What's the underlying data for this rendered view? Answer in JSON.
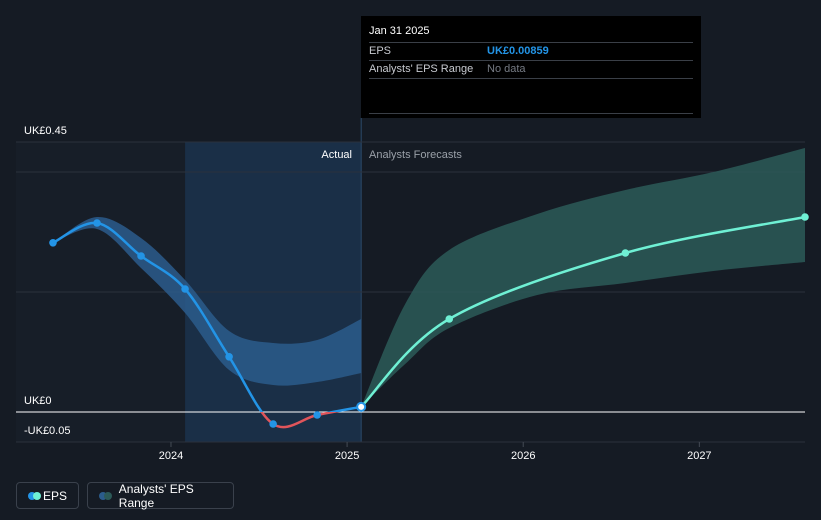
{
  "tooltip": {
    "date": "Jan 31 2025",
    "rows": [
      {
        "label": "EPS",
        "value": "UK£0.00859"
      },
      {
        "label": "Analysts' EPS Range",
        "value": "No data"
      }
    ]
  },
  "section_labels": {
    "actual": "Actual",
    "forecast": "Analysts Forecasts"
  },
  "legend": {
    "eps": "EPS",
    "range": "Analysts' EPS Range"
  },
  "colors": {
    "eps_actual": "#2394e6",
    "eps_negative": "#e0555b",
    "eps_forecast": "#6ff0d4",
    "range_actual": "#2b5c8c",
    "range_forecast": "#2c5a58",
    "tooltip_value": "#2394e6",
    "tooltip_muted": "#767b84"
  },
  "chart_data": {
    "type": "line",
    "y_ticks": [
      {
        "value": 0.45,
        "label": "UK£0.45"
      },
      {
        "value": 0,
        "label": "UK£0"
      },
      {
        "value": -0.05,
        "label": "-UK£0.05"
      }
    ],
    "gridlines": [
      0.45,
      0.4,
      0.2
    ],
    "x_ticks": [
      {
        "value": 2024.0,
        "label": "2024"
      },
      {
        "value": 2025.0,
        "label": "2025"
      },
      {
        "value": 2026.0,
        "label": "2026"
      },
      {
        "value": 2027.0,
        "label": "2027"
      }
    ],
    "xlim": [
      2023.12,
      2027.6
    ],
    "ylim": [
      -0.05,
      0.45
    ],
    "actual_start": 2024.08,
    "actual_end": 2025.08,
    "series": [
      {
        "name": "EPS",
        "role": "actual",
        "points": [
          {
            "x": 2023.33,
            "y": 0.282
          },
          {
            "x": 2023.58,
            "y": 0.315
          },
          {
            "x": 2023.83,
            "y": 0.26
          },
          {
            "x": 2024.08,
            "y": 0.205
          },
          {
            "x": 2024.33,
            "y": 0.092
          },
          {
            "x": 2024.58,
            "y": -0.02
          },
          {
            "x": 2024.83,
            "y": -0.005
          },
          {
            "x": 2025.08,
            "y": 0.00859
          }
        ]
      },
      {
        "name": "EPS",
        "role": "forecast",
        "points": [
          {
            "x": 2025.08,
            "y": 0.00859
          },
          {
            "x": 2025.58,
            "y": 0.155
          },
          {
            "x": 2026.58,
            "y": 0.265
          },
          {
            "x": 2027.6,
            "y": 0.325
          }
        ]
      }
    ],
    "range_actual": {
      "x": [
        2023.33,
        2023.58,
        2023.83,
        2024.08,
        2024.33,
        2024.58,
        2024.83,
        2025.08
      ],
      "upper": [
        0.282,
        0.325,
        0.29,
        0.22,
        0.135,
        0.115,
        0.12,
        0.155
      ],
      "lower": [
        0.282,
        0.305,
        0.24,
        0.165,
        0.07,
        0.045,
        0.05,
        0.065
      ]
    },
    "range_forecast": {
      "x": [
        2025.08,
        2025.33,
        2025.58,
        2026.08,
        2026.58,
        2027.08,
        2027.6
      ],
      "upper": [
        0.00859,
        0.18,
        0.27,
        0.33,
        0.37,
        0.4,
        0.44
      ],
      "lower": [
        0.00859,
        0.08,
        0.14,
        0.195,
        0.215,
        0.235,
        0.25
      ]
    }
  }
}
